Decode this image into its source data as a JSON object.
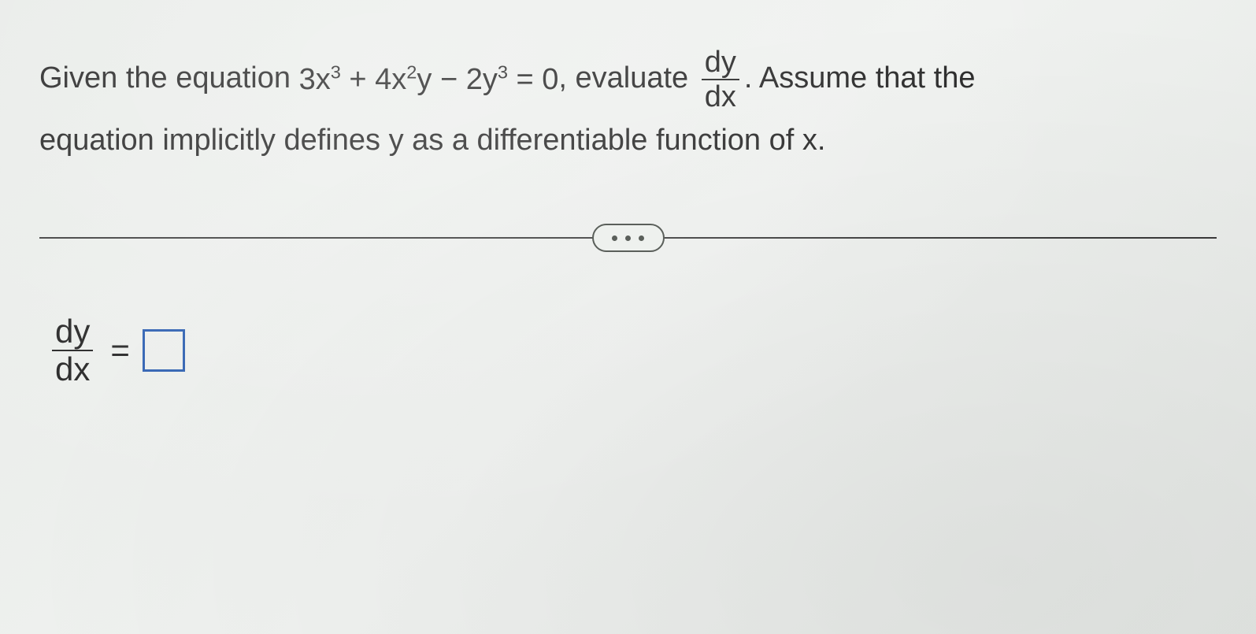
{
  "problem": {
    "prefix": "Given the equation ",
    "equation_html": "3x<sup>3</sup> + 4x<sup>2</sup>y − 2y<sup>3</sup> = 0",
    "mid1": ", evaluate ",
    "frac1_num": "dy",
    "frac1_den": "dx",
    "mid2": ". Assume that the",
    "line2": "equation implicitly defines y as a differentiable function of x."
  },
  "answer": {
    "frac_num": "dy",
    "frac_den": "dx",
    "equals": "="
  },
  "style": {
    "text_color": "#1a1a1a",
    "divider_color": "#3a3a3a",
    "pill_border": "#5a5f5a",
    "pill_bg": "#eef1ee",
    "box_border": "#2a5db0",
    "body_font_size": 38,
    "answer_font_size": 42
  }
}
